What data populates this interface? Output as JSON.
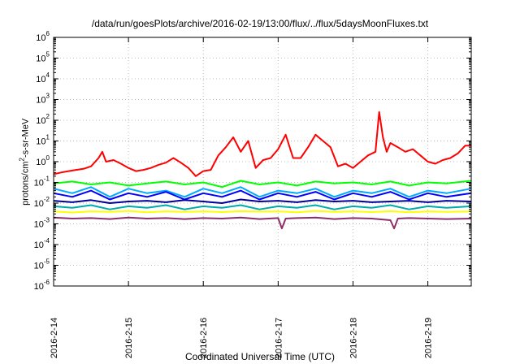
{
  "chart_data": {
    "type": "line",
    "title": "/data/run/goesPlots/archive/2016-02-19/13:00/flux/../flux/5daysMoonFluxes.txt",
    "xlabel": "Coordinated Universal Time (UTC)",
    "ylabel": "protons/cm2-s-sr-MeV",
    "yscale": "log",
    "ylim": [
      1e-06,
      1000000.0
    ],
    "xlim": [
      0,
      5.58
    ],
    "x_ticks": [
      "2016-2-14",
      "2016-2-15",
      "2016-2-16",
      "2016-2-17",
      "2016-2-18",
      "2016-2-19"
    ],
    "y_ticks": [
      "10-6",
      "10-5",
      "10-4",
      "10-3",
      "10-2",
      "10-1",
      "100",
      "101",
      "102",
      "103",
      "104",
      "105",
      "106"
    ],
    "grid": true,
    "series": [
      {
        "color": "#ff0000",
        "x": [
          0,
          0.1,
          0.2,
          0.3,
          0.4,
          0.5,
          0.6,
          0.65,
          0.7,
          0.8,
          0.9,
          1.0,
          1.1,
          1.2,
          1.3,
          1.4,
          1.5,
          1.6,
          1.7,
          1.8,
          1.9,
          2.0,
          2.1,
          2.2,
          2.3,
          2.4,
          2.5,
          2.6,
          2.7,
          2.8,
          2.9,
          3.0,
          3.1,
          3.2,
          3.3,
          3.4,
          3.5,
          3.6,
          3.7,
          3.8,
          3.9,
          4.0,
          4.1,
          4.2,
          4.3,
          4.35,
          4.4,
          4.45,
          4.5,
          4.6,
          4.7,
          4.8,
          4.9,
          5.0,
          5.1,
          5.2,
          5.3,
          5.4,
          5.5,
          5.58
        ],
        "values": [
          0.25,
          0.3,
          0.35,
          0.4,
          0.45,
          0.6,
          1.5,
          3,
          1.0,
          1.2,
          0.8,
          0.5,
          0.35,
          0.4,
          0.5,
          0.7,
          0.9,
          1.5,
          0.9,
          0.5,
          0.2,
          0.35,
          0.4,
          2,
          5,
          15,
          3,
          10,
          0.5,
          1.2,
          1.5,
          4,
          20,
          1.5,
          1.5,
          5,
          20,
          10,
          5,
          0.6,
          0.8,
          0.5,
          1.0,
          2,
          3,
          250,
          15,
          3,
          8,
          5,
          3,
          4,
          2,
          1.0,
          0.8,
          1.2,
          1.5,
          2.5,
          6,
          6
        ]
      },
      {
        "color": "#00ff00",
        "x": [
          0,
          0.25,
          0.5,
          0.75,
          1.0,
          1.25,
          1.5,
          1.75,
          2.0,
          2.25,
          2.5,
          2.75,
          3.0,
          3.25,
          3.5,
          3.75,
          4.0,
          4.25,
          4.5,
          4.75,
          5.0,
          5.25,
          5.58
        ],
        "values": [
          0.09,
          0.11,
          0.08,
          0.1,
          0.07,
          0.09,
          0.11,
          0.08,
          0.1,
          0.06,
          0.12,
          0.08,
          0.1,
          0.07,
          0.11,
          0.09,
          0.1,
          0.08,
          0.11,
          0.07,
          0.1,
          0.09,
          0.12
        ]
      },
      {
        "color": "#00aaff",
        "x": [
          0,
          0.25,
          0.5,
          0.75,
          1.0,
          1.25,
          1.5,
          1.75,
          2.0,
          2.25,
          2.5,
          2.75,
          3.0,
          3.25,
          3.5,
          3.75,
          4.0,
          4.25,
          4.5,
          4.75,
          5.0,
          5.25,
          5.58
        ],
        "values": [
          0.05,
          0.03,
          0.06,
          0.02,
          0.05,
          0.03,
          0.04,
          0.02,
          0.05,
          0.03,
          0.06,
          0.02,
          0.04,
          0.03,
          0.05,
          0.02,
          0.04,
          0.03,
          0.05,
          0.02,
          0.04,
          0.03,
          0.05
        ]
      },
      {
        "color": "#0000ff",
        "x": [
          0,
          0.25,
          0.5,
          0.75,
          1.0,
          1.25,
          1.5,
          1.75,
          2.0,
          2.25,
          2.5,
          2.75,
          3.0,
          3.25,
          3.5,
          3.75,
          4.0,
          4.25,
          4.5,
          4.75,
          5.0,
          5.25,
          5.58
        ],
        "values": [
          0.03,
          0.02,
          0.04,
          0.015,
          0.03,
          0.02,
          0.035,
          0.015,
          0.03,
          0.02,
          0.04,
          0.015,
          0.03,
          0.02,
          0.035,
          0.015,
          0.03,
          0.02,
          0.035,
          0.015,
          0.03,
          0.02,
          0.03
        ]
      },
      {
        "color": "#000099",
        "x": [
          0,
          0.25,
          0.5,
          0.75,
          1.0,
          1.25,
          1.5,
          1.75,
          2.0,
          2.25,
          2.5,
          2.75,
          3.0,
          3.25,
          3.5,
          3.75,
          4.0,
          4.25,
          4.5,
          4.75,
          5.0,
          5.25,
          5.58
        ],
        "values": [
          0.013,
          0.011,
          0.014,
          0.01,
          0.012,
          0.013,
          0.011,
          0.014,
          0.012,
          0.01,
          0.015,
          0.012,
          0.013,
          0.011,
          0.014,
          0.012,
          0.013,
          0.011,
          0.012,
          0.013,
          0.011,
          0.013,
          0.012
        ]
      },
      {
        "color": "#00aaaa",
        "x": [
          0,
          0.25,
          0.5,
          0.75,
          1.0,
          1.25,
          1.5,
          1.75,
          2.0,
          2.25,
          2.5,
          2.75,
          3.0,
          3.25,
          3.5,
          3.75,
          4.0,
          4.25,
          4.5,
          4.75,
          5.0,
          5.25,
          5.58
        ],
        "values": [
          0.007,
          0.006,
          0.008,
          0.005,
          0.007,
          0.006,
          0.008,
          0.005,
          0.007,
          0.006,
          0.008,
          0.005,
          0.007,
          0.006,
          0.008,
          0.005,
          0.007,
          0.006,
          0.008,
          0.005,
          0.007,
          0.006,
          0.007
        ]
      },
      {
        "color": "#ffff00",
        "x": [
          0,
          0.25,
          0.5,
          0.75,
          1.0,
          1.25,
          1.5,
          1.75,
          2.0,
          2.25,
          2.5,
          2.75,
          3.0,
          3.25,
          3.5,
          3.75,
          4.0,
          4.25,
          4.5,
          4.75,
          5.0,
          5.25,
          5.58
        ],
        "values": [
          0.004,
          0.0035,
          0.004,
          0.0038,
          0.0042,
          0.0036,
          0.004,
          0.0038,
          0.004,
          0.0037,
          0.0041,
          0.0039,
          0.004,
          0.0036,
          0.0042,
          0.0038,
          0.004,
          0.0037,
          0.0041,
          0.0036,
          0.004,
          0.0038,
          0.004
        ]
      },
      {
        "color": "#8b2f6b",
        "x": [
          0,
          0.25,
          0.5,
          0.75,
          1.0,
          1.25,
          1.5,
          1.75,
          2.0,
          2.25,
          2.5,
          2.75,
          3.0,
          3.05,
          3.1,
          3.25,
          3.5,
          3.75,
          4.0,
          4.25,
          4.5,
          4.55,
          4.6,
          4.75,
          5.0,
          5.25,
          5.58
        ],
        "values": [
          0.002,
          0.0018,
          0.0019,
          0.0017,
          0.002,
          0.0018,
          0.0019,
          0.0017,
          0.0019,
          0.0018,
          0.002,
          0.0017,
          0.0019,
          0.0006,
          0.0018,
          0.0019,
          0.002,
          0.0017,
          0.0019,
          0.0018,
          0.0015,
          0.0006,
          0.0018,
          0.0019,
          0.0018,
          0.0017,
          0.0018
        ]
      }
    ]
  }
}
